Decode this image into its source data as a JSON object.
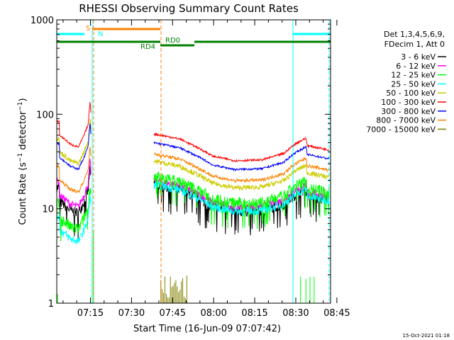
{
  "chart_data": {
    "type": "line",
    "title": "RHESSI Observing Summary Count Rates",
    "xlabel": "Start Time (16-Jun-09 07:07:42)",
    "ylabel": "Count Rate (s⁻¹ detector⁻¹)",
    "ylabel_main": "Count Rate (s",
    "ylabel_sup1": "−1",
    "ylabel_mid": " detector",
    "ylabel_sup2": "−1",
    "ylabel_end": ")",
    "y_scale": "log",
    "ylim": [
      1,
      1000
    ],
    "xlim_minutes": [
      -5,
      95
    ],
    "x_ticks": [
      {
        "label": "07:15",
        "minutes": 7.3
      },
      {
        "label": "07:30",
        "minutes": 22.3
      },
      {
        "label": "07:45",
        "minutes": 37.3
      },
      {
        "label": "08:00",
        "minutes": 52.3
      },
      {
        "label": "08:15",
        "minutes": 67.3
      },
      {
        "label": "08:30",
        "minutes": 82.3
      },
      {
        "label": "08:45",
        "minutes": 97.3
      }
    ],
    "y_ticks": [
      {
        "label": "1",
        "value": 1
      },
      {
        "label": "10",
        "value": 10
      },
      {
        "label": "100",
        "value": 100
      },
      {
        "label": "1000",
        "value": 1000
      }
    ],
    "legend_position": "right",
    "legend_header": [
      "Det 1,3,4,5,6,9,",
      "FDecim 1, Att 0"
    ],
    "series": [
      {
        "name": "3 - 6 keV",
        "color": "#000000"
      },
      {
        "name": "6 - 12 keV",
        "color": "#ff00ff"
      },
      {
        "name": "12 - 25 keV",
        "color": "#00ff00"
      },
      {
        "name": "25 - 50 keV",
        "color": "#00ffff"
      },
      {
        "name": "50 - 100 keV",
        "color": "#cccc00"
      },
      {
        "name": "100 - 300 keV",
        "color": "#ff0000"
      },
      {
        "name": "300 - 800 keV",
        "color": "#0000ff"
      },
      {
        "name": "800 - 7000 keV",
        "color": "#ff8000"
      },
      {
        "name": "7000 - 15000 keV",
        "color": "#808000"
      }
    ],
    "flags": [
      {
        "label": "S",
        "color": "#ff8000"
      },
      {
        "label": "N",
        "color": "#00ffff"
      },
      {
        "label": "RD0",
        "color": "#008000"
      },
      {
        "label": "RD4",
        "color": "#008000"
      }
    ],
    "timestamp": "15-Oct-2021 01:18"
  }
}
